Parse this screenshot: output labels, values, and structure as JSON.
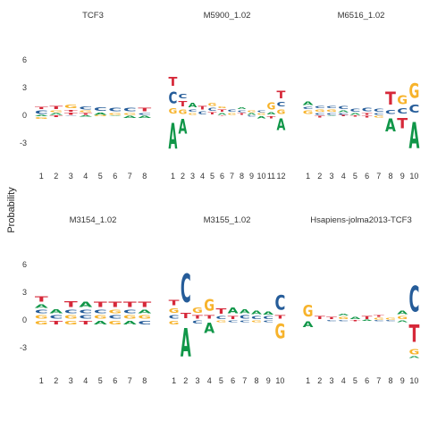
{
  "colors": {
    "A": "#109648",
    "C": "#255C99",
    "G": "#F7B32B",
    "T": "#D62839"
  },
  "chart_data": {
    "type": "sequence-logo",
    "ylabel": "Probability",
    "y_ticks": [
      6,
      3,
      0,
      -3
    ],
    "ylim": [
      -6.5,
      7.5
    ],
    "panels": [
      {
        "title": "TCF3",
        "positions": [
          [
            [
              "A",
              -0.15
            ],
            [
              "G",
              -0.3
            ],
            [
              "C",
              0.6
            ],
            [
              "T",
              0.35
            ]
          ],
          [
            [
              "T",
              -0.25
            ],
            [
              "A",
              0.3
            ],
            [
              "G",
              0.3
            ],
            [
              "T",
              0.5
            ]
          ],
          [
            [
              "C",
              -0.1
            ],
            [
              "T",
              0.35
            ],
            [
              "T",
              0.3
            ],
            [
              "G",
              0.6
            ]
          ],
          [
            [
              "A",
              -0.2
            ],
            [
              "T",
              0.3
            ],
            [
              "G",
              0.25
            ],
            [
              "C",
              0.5
            ]
          ],
          [
            [
              "G",
              -0.15
            ],
            [
              "A",
              0.35
            ],
            [
              "C",
              0.55
            ]
          ],
          [
            [
              "A",
              -0.1
            ],
            [
              "G",
              0.3
            ],
            [
              "C",
              0.6
            ]
          ],
          [
            [
              "A",
              -0.35
            ],
            [
              "G",
              0.3
            ],
            [
              "C",
              0.55
            ]
          ],
          [
            [
              "A",
              -0.35
            ],
            [
              "C",
              0.3
            ],
            [
              "T",
              0.6
            ]
          ]
        ]
      },
      {
        "title": "M5900_1.02",
        "positions": [
          [
            [
              "A",
              -4.5
            ],
            [
              "G",
              0.9
            ],
            [
              "C",
              2.0
            ],
            [
              "T",
              1.5
            ]
          ],
          [
            [
              "A",
              -2.5
            ],
            [
              "G",
              0.8
            ],
            [
              "T",
              0.9
            ],
            [
              "C",
              0.8
            ]
          ],
          [
            [
              "G",
              0.3
            ],
            [
              "C",
              0.4
            ],
            [
              "A",
              0.8
            ]
          ],
          [
            [
              "C",
              0.5
            ],
            [
              "T",
              0.6
            ]
          ],
          [
            [
              "T",
              0.4
            ],
            [
              "C",
              0.5
            ],
            [
              "G",
              0.5
            ]
          ],
          [
            [
              "T",
              -0.1
            ],
            [
              "A",
              0.3
            ],
            [
              "T",
              0.4
            ],
            [
              "G",
              0.3
            ]
          ],
          [
            [
              "G",
              0.3
            ],
            [
              "C",
              0.4
            ]
          ],
          [
            [
              "T",
              0.3
            ],
            [
              "C",
              0.3
            ],
            [
              "A",
              0.3
            ]
          ],
          [
            [
              "C",
              -0.2
            ],
            [
              "A",
              0.3
            ],
            [
              "G",
              0.3
            ]
          ],
          [
            [
              "A",
              -0.4
            ],
            [
              "G",
              0.3
            ],
            [
              "C",
              0.3
            ]
          ],
          [
            [
              "T",
              -0.4
            ],
            [
              "A",
              0.4
            ],
            [
              "G",
              1.2
            ]
          ],
          [
            [
              "A",
              -2.0
            ],
            [
              "G",
              0.8
            ],
            [
              "C",
              0.8
            ],
            [
              "T",
              1.3
            ]
          ]
        ]
      },
      {
        "title": "M6516_1.02",
        "positions": [
          [
            [
              "G",
              0.6
            ],
            [
              "C",
              0.4
            ],
            [
              "A",
              0.6
            ]
          ],
          [
            [
              "T",
              -0.3
            ],
            [
              "C",
              0.3
            ],
            [
              "G",
              0.4
            ],
            [
              "C",
              0.35
            ]
          ],
          [
            [
              "A",
              -0.1
            ],
            [
              "C",
              0.3
            ],
            [
              "G",
              0.4
            ],
            [
              "C",
              0.4
            ]
          ],
          [
            [
              "T",
              -0.15
            ],
            [
              "C",
              0.3
            ],
            [
              "A",
              0.3
            ],
            [
              "C",
              0.45
            ]
          ],
          [
            [
              "T",
              -0.2
            ],
            [
              "A",
              0.3
            ],
            [
              "C",
              0.5
            ]
          ],
          [
            [
              "T",
              -0.3
            ],
            [
              "T",
              0.3
            ],
            [
              "C",
              0.55
            ]
          ],
          [
            [
              "G",
              -0.3
            ],
            [
              "C",
              0.3
            ],
            [
              "C",
              0.5
            ]
          ],
          [
            [
              "A",
              -2.2
            ],
            [
              "C",
              0.7
            ],
            [
              "T",
              2.2
            ]
          ],
          [
            [
              "T",
              -1.8
            ],
            [
              "C",
              0.9
            ],
            [
              "G",
              1.5
            ]
          ],
          [
            [
              "A",
              -4.5
            ],
            [
              "C",
              1.4
            ],
            [
              "G",
              2.5
            ]
          ]
        ]
      },
      {
        "title": "M3154_1.02",
        "positions": [
          [
            [
              "G",
              -0.6
            ],
            [
              "G",
              0.6
            ],
            [
              "C",
              0.6
            ],
            [
              "A",
              0.6
            ],
            [
              "T",
              0.9
            ]
          ],
          [
            [
              "T",
              -0.6
            ],
            [
              "C",
              0.6
            ],
            [
              "A",
              0.7
            ]
          ],
          [
            [
              "G",
              -0.6
            ],
            [
              "G",
              0.6
            ],
            [
              "C",
              0.6
            ],
            [
              "T",
              1.0
            ]
          ],
          [
            [
              "T",
              -0.6
            ],
            [
              "C",
              0.6
            ],
            [
              "C",
              0.6
            ],
            [
              "A",
              0.9
            ]
          ],
          [
            [
              "A",
              -0.6
            ],
            [
              "G",
              0.6
            ],
            [
              "C",
              0.6
            ],
            [
              "T",
              0.9
            ]
          ],
          [
            [
              "G",
              -0.6
            ],
            [
              "C",
              0.6
            ],
            [
              "G",
              0.6
            ],
            [
              "T",
              0.9
            ]
          ],
          [
            [
              "A",
              -0.6
            ],
            [
              "G",
              0.6
            ],
            [
              "C",
              0.6
            ],
            [
              "T",
              0.9
            ]
          ],
          [
            [
              "C",
              -0.6
            ],
            [
              "G",
              0.6
            ],
            [
              "A",
              0.6
            ],
            [
              "T",
              0.9
            ]
          ]
        ]
      },
      {
        "title": "M3155_1.02",
        "positions": [
          [
            [
              "G",
              -0.6
            ],
            [
              "C",
              0.6
            ],
            [
              "G",
              0.8
            ],
            [
              "T",
              0.9
            ]
          ],
          [
            [
              "A",
              -5.0
            ],
            [
              "T",
              0.9
            ],
            [
              "C",
              5.0
            ]
          ],
          [
            [
              "C",
              -0.5
            ],
            [
              "T",
              0.6
            ],
            [
              "G",
              0.9
            ]
          ],
          [
            [
              "A",
              -1.8
            ],
            [
              "T",
              0.6
            ],
            [
              "G",
              2.0
            ]
          ],
          [
            [
              "G",
              -0.3
            ],
            [
              "C",
              0.5
            ],
            [
              "T",
              0.9
            ]
          ],
          [
            [
              "C",
              -0.3
            ],
            [
              "T",
              0.5
            ],
            [
              "A",
              1.0
            ]
          ],
          [
            [
              "C",
              -0.3
            ],
            [
              "C",
              0.6
            ],
            [
              "A",
              0.7
            ]
          ],
          [
            [
              "G",
              -0.3
            ],
            [
              "C",
              0.5
            ],
            [
              "A",
              0.6
            ]
          ],
          [
            [
              "C",
              -0.3
            ],
            [
              "C",
              0.5
            ],
            [
              "A",
              0.5
            ]
          ],
          [
            [
              "G",
              -2.5
            ],
            [
              "T",
              0.6
            ],
            [
              "C",
              2.5
            ]
          ]
        ]
      },
      {
        "title": "Hsapiens-jolma2013-TCF3",
        "positions": [
          [
            [
              "A",
              -1.0
            ],
            [
              "G",
              2.0
            ]
          ],
          [
            [
              "T",
              0.5
            ]
          ],
          [
            [
              "C",
              -0.2
            ],
            [
              "T",
              0.4
            ]
          ],
          [
            [
              "C",
              -0.2
            ],
            [
              "G",
              0.4
            ],
            [
              "A",
              0.3
            ]
          ],
          [
            [
              "T",
              -0.2
            ],
            [
              "A",
              0.4
            ]
          ],
          [
            [
              "A",
              -0.15
            ],
            [
              "T",
              0.5
            ]
          ],
          [
            [
              "C",
              -0.2
            ],
            [
              "G",
              0.3
            ],
            [
              "T",
              0.3
            ]
          ],
          [
            [
              "C",
              -0.2
            ],
            [
              "G",
              0.3
            ]
          ],
          [
            [
              "A",
              -0.3
            ],
            [
              "G",
              0.5
            ],
            [
              "A",
              0.6
            ]
          ],
          [
            [
              "T",
              -3.0
            ],
            [
              "G",
              -0.9
            ],
            [
              "A",
              -0.3
            ],
            [
              "C",
              4.5
            ]
          ]
        ]
      }
    ]
  }
}
